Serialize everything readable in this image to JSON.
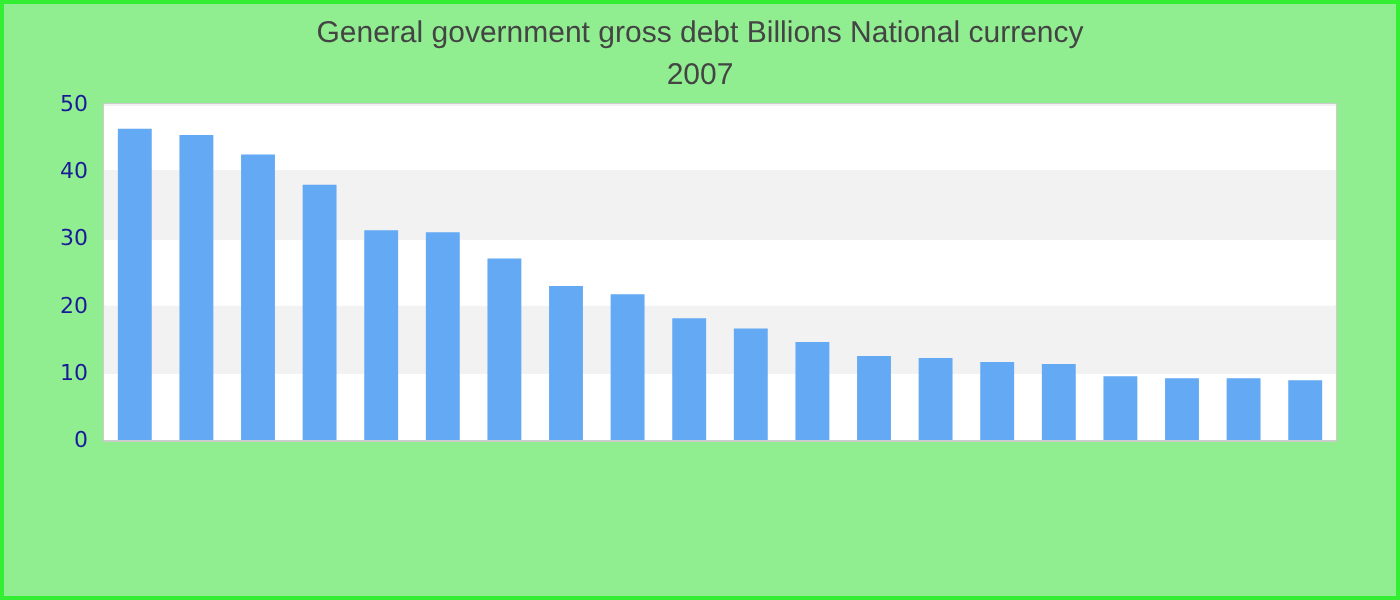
{
  "chart_data": {
    "type": "bar",
    "title": "General government gross debt Billions National currency",
    "subtitle": "2007",
    "categories": [
      null,
      null,
      null,
      null,
      null,
      null,
      null,
      null,
      null,
      null,
      null,
      null,
      null,
      null,
      null,
      null,
      null,
      null,
      null,
      null
    ],
    "values": [
      46.3,
      45.4,
      42.5,
      38.0,
      31.2,
      30.9,
      27.0,
      22.9,
      21.7,
      18.1,
      16.6,
      14.6,
      12.5,
      12.2,
      11.6,
      11.3,
      9.5,
      9.2,
      9.2,
      8.9
    ],
    "color": "#63a9f4",
    "ylim": [
      0,
      50
    ],
    "yticks": [
      0,
      10,
      20,
      30,
      40,
      50
    ],
    "grid": true
  }
}
